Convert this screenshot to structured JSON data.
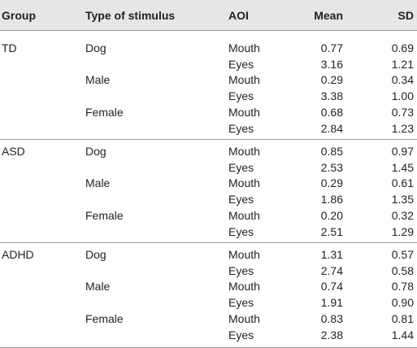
{
  "table": {
    "headers": {
      "group": "Group",
      "stimulus": "Type of stimulus",
      "aoi": "AOI",
      "mean": "Mean",
      "sd": "SD"
    },
    "groups": [
      {
        "group": "TD",
        "rows": [
          {
            "stimulus": "Dog",
            "aoi": "Mouth",
            "mean": "0.77",
            "sd": "0.69"
          },
          {
            "stimulus": "",
            "aoi": "Eyes",
            "mean": "3.16",
            "sd": "1.21"
          },
          {
            "stimulus": "Male",
            "aoi": "Mouth",
            "mean": "0.29",
            "sd": "0.34"
          },
          {
            "stimulus": "",
            "aoi": "Eyes",
            "mean": "3.38",
            "sd": "1.00"
          },
          {
            "stimulus": "Female",
            "aoi": "Mouth",
            "mean": "0.68",
            "sd": "0.73"
          },
          {
            "stimulus": "",
            "aoi": "Eyes",
            "mean": "2.84",
            "sd": "1.23"
          }
        ]
      },
      {
        "group": "ASD",
        "rows": [
          {
            "stimulus": "Dog",
            "aoi": "Mouth",
            "mean": "0.85",
            "sd": "0.97"
          },
          {
            "stimulus": "",
            "aoi": "Eyes",
            "mean": "2.53",
            "sd": "1.45"
          },
          {
            "stimulus": "Male",
            "aoi": "Mouth",
            "mean": "0.29",
            "sd": "0.61"
          },
          {
            "stimulus": "",
            "aoi": "Eyes",
            "mean": "1.86",
            "sd": "1.35"
          },
          {
            "stimulus": "Female",
            "aoi": "Mouth",
            "mean": "0.20",
            "sd": "0.32"
          },
          {
            "stimulus": "",
            "aoi": "Eyes",
            "mean": "2.51",
            "sd": "1.29"
          }
        ]
      },
      {
        "group": "ADHD",
        "rows": [
          {
            "stimulus": "Dog",
            "aoi": "Mouth",
            "mean": "1.31",
            "sd": "0.57"
          },
          {
            "stimulus": "",
            "aoi": "Eyes",
            "mean": "2.74",
            "sd": "0.58"
          },
          {
            "stimulus": "Male",
            "aoi": "Mouth",
            "mean": "0.74",
            "sd": "0.78"
          },
          {
            "stimulus": "",
            "aoi": "Eyes",
            "mean": "1.91",
            "sd": "0.90"
          },
          {
            "stimulus": "Female",
            "aoi": "Mouth",
            "mean": "0.83",
            "sd": "0.81"
          },
          {
            "stimulus": "",
            "aoi": "Eyes",
            "mean": "2.38",
            "sd": "1.44"
          }
        ]
      }
    ]
  }
}
